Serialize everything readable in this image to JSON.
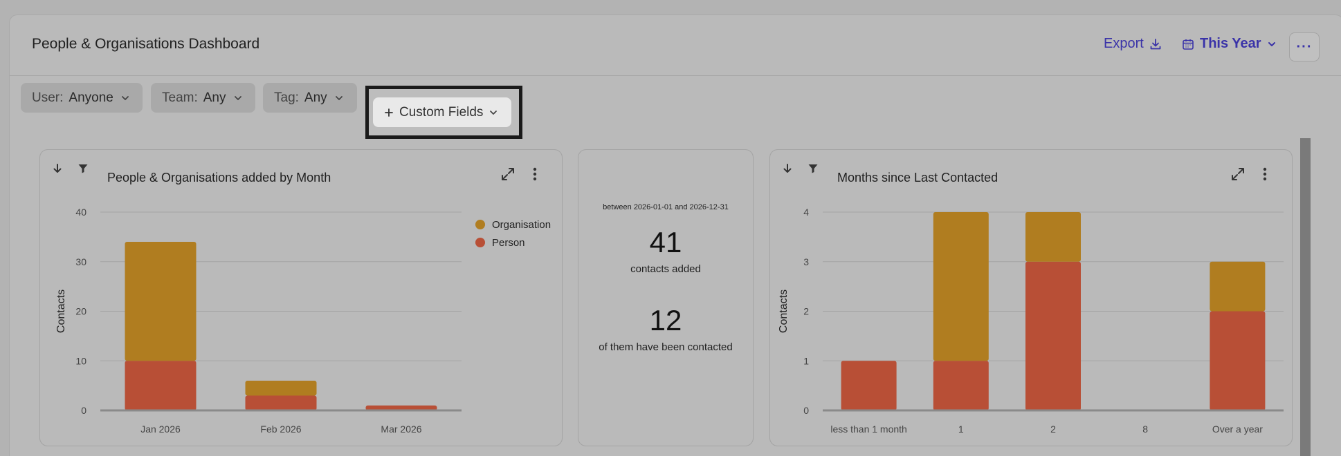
{
  "header": {
    "title": "People & Organisations Dashboard",
    "export_label": "Export",
    "period_label": "This Year",
    "more_label": "···"
  },
  "filters": {
    "user": {
      "key": "User:",
      "value": "Anyone"
    },
    "team": {
      "key": "Team:",
      "value": "Any"
    },
    "tag": {
      "key": "Tag:",
      "value": "Any"
    },
    "custom_fields_label": "Custom Fields"
  },
  "colors": {
    "organisation": "#b07d20",
    "person": "#b84f36",
    "accent": "#3a33a8"
  },
  "icons": [
    "download-icon",
    "calendar-icon",
    "chevron-down-icon",
    "filter-icon",
    "expand-icon",
    "kebab-icon",
    "plus-icon",
    "sort-down-icon"
  ],
  "kpi": {
    "range": "between 2026-01-01 and 2026-12-31",
    "added_count": "41",
    "added_label": "contacts added",
    "contacted_count": "12",
    "contacted_label": "of them have been contacted"
  },
  "chart_data": [
    {
      "type": "bar",
      "stacked": true,
      "title": "People & Organisations added by Month",
      "ylabel": "Contacts",
      "xlabel": "",
      "ylim": [
        0,
        40
      ],
      "yticks": [
        "0",
        "10",
        "20",
        "30",
        "40"
      ],
      "categories": [
        "Jan 2026",
        "Feb 2026",
        "Mar 2026"
      ],
      "series": [
        {
          "name": "Person",
          "values": [
            10,
            3,
            1
          ]
        },
        {
          "name": "Organisation",
          "values": [
            24,
            3,
            0
          ]
        }
      ],
      "legend": "top-right",
      "grid": true
    },
    {
      "type": "bar",
      "stacked": true,
      "title": "Months since Last Contacted",
      "ylabel": "Contacts",
      "xlabel": "",
      "ylim": [
        0,
        4
      ],
      "yticks": [
        "0",
        "1",
        "2",
        "3",
        "4"
      ],
      "categories": [
        "less than 1 month",
        "1",
        "2",
        "8",
        "Over a year"
      ],
      "series": [
        {
          "name": "Person",
          "values": [
            1,
            1,
            3,
            0,
            2
          ]
        },
        {
          "name": "Organisation",
          "values": [
            0,
            3,
            1,
            0,
            1
          ]
        }
      ],
      "legend": "none",
      "grid": true
    }
  ]
}
